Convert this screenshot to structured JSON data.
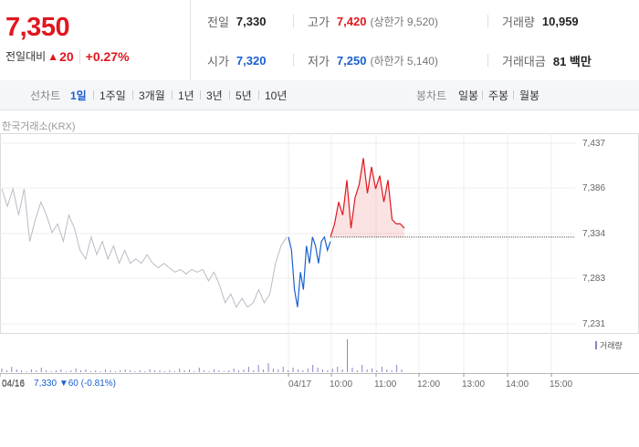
{
  "quote": {
    "price": "7,350",
    "change_label": "전일대비",
    "change_arrow": "▲",
    "change_value": "20",
    "change_pct": "+0.27%"
  },
  "stats": {
    "prev_close": {
      "label": "전일",
      "value": "7,330"
    },
    "high": {
      "label": "고가",
      "value": "7,420",
      "sub": "(상한가 9,520)"
    },
    "volume": {
      "label": "거래량",
      "value": "10,959"
    },
    "open": {
      "label": "시가",
      "value": "7,320"
    },
    "low": {
      "label": "저가",
      "value": "7,250",
      "sub": "(하한가 5,140)"
    },
    "amount": {
      "label": "거래대금",
      "value": "81 백만"
    }
  },
  "tabs": {
    "line_header": "선차트",
    "line_items": [
      "1일",
      "1주일",
      "3개월",
      "1년",
      "3년",
      "5년",
      "10년"
    ],
    "selected": "1일",
    "candle_header": "봉차트",
    "candle_items": [
      "일봉",
      "주봉",
      "월봉"
    ]
  },
  "source": "한국거래소(KRX)",
  "bottom_info": {
    "date": "04/16",
    "value": "7,330 ▼60 (-0.81%)"
  },
  "legend": "거래량",
  "colors": {
    "up": "#e0171e",
    "down": "#1a5fd0",
    "prev": "#b9bcc6",
    "volume": "#8c82c8"
  },
  "chart_data": {
    "type": "line",
    "title": "",
    "x_ticks": [
      "04/16",
      "04/17",
      "10:00",
      "11:00",
      "12:00",
      "13:00",
      "14:00",
      "15:00"
    ],
    "y_ticks": [
      7437,
      7386,
      7334,
      7283,
      7231
    ],
    "ylim": [
      7231,
      7437
    ],
    "reference_price": 7330,
    "series": [
      {
        "values": [
          7385,
          7365,
          7385,
          7355,
          7385,
          7325,
          7350,
          7370,
          7355,
          7335,
          7345,
          7325,
          7355,
          7340,
          7315,
          7305,
          7330,
          7310,
          7325,
          7305,
          7320,
          7300,
          7315,
          7300,
          7305,
          7300,
          7310,
          7300,
          7295,
          7300,
          7295,
          7290,
          7293,
          7288,
          7293,
          7290,
          7293,
          7280,
          7290,
          7275,
          7255,
          7265,
          7250,
          7260,
          7250,
          7255,
          7270,
          7255,
          7265,
          7300,
          7320,
          7330
        ]
      },
      {
        "values": [
          7330,
          7315,
          7270,
          7250,
          7290,
          7270,
          7320,
          7300,
          7330,
          7320,
          7300,
          7325,
          7330,
          7315,
          7325
        ]
      },
      {
        "values": [
          7330,
          7345,
          7370,
          7355,
          7395,
          7340,
          7375,
          7390,
          7420,
          7380,
          7410,
          7385,
          7400,
          7370,
          7395,
          7350,
          7345,
          7345,
          7340
        ]
      }
    ],
    "volume_label": "거래량"
  }
}
